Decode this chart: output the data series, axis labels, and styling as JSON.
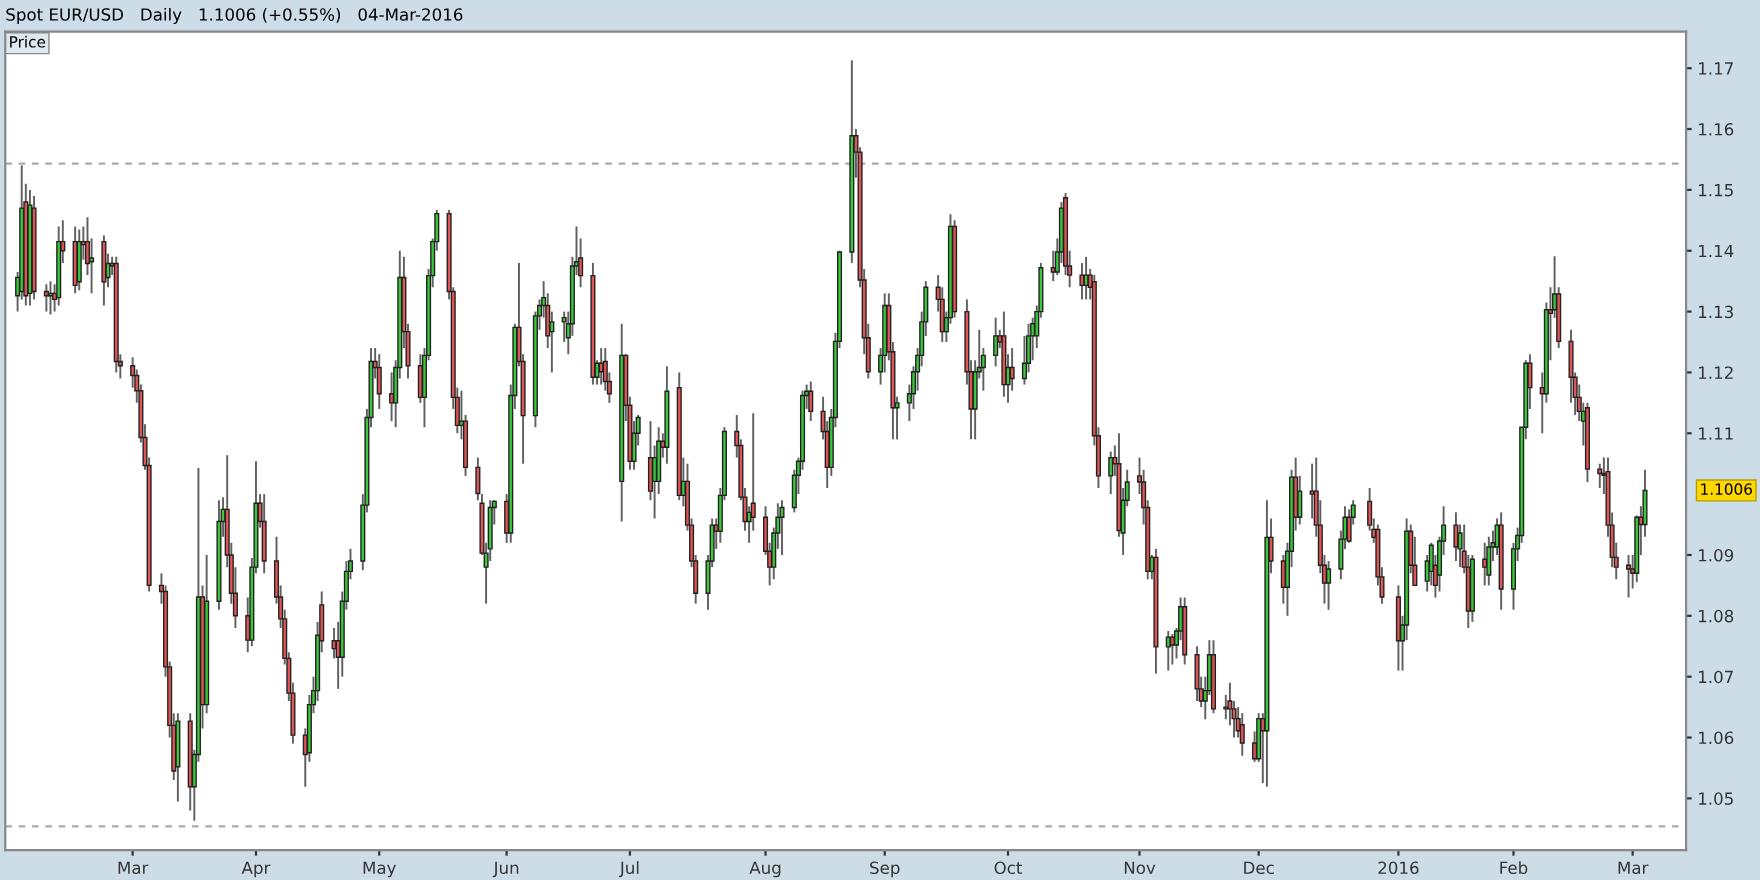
{
  "chart_data": {
    "type": "candlestick",
    "title": "Spot EUR/USD   Daily   1.1006 (+0.55%)   04-Mar-2016",
    "annotations": [
      "Price",
      "1.1006"
    ],
    "ylim": [
      1.0415,
      1.176
    ],
    "yticks": [
      1.05,
      1.06,
      1.07,
      1.08,
      1.09,
      1.11,
      1.12,
      1.13,
      1.14,
      1.15,
      1.16,
      1.17
    ],
    "xlim": [
      "2015-01-30",
      "2016-03-14"
    ],
    "xticks": [
      {
        "value": "2015-03-02",
        "label": "Mar"
      },
      {
        "value": "2015-04-01",
        "label": "Apr"
      },
      {
        "value": "2015-05-01",
        "label": "May"
      },
      {
        "value": "2015-06-01",
        "label": "Jun"
      },
      {
        "value": "2015-07-01",
        "label": "Jul"
      },
      {
        "value": "2015-08-03",
        "label": "Aug"
      },
      {
        "value": "2015-09-01",
        "label": "Sep"
      },
      {
        "value": "2015-10-01",
        "label": "Oct"
      },
      {
        "value": "2015-11-02",
        "label": "Nov"
      },
      {
        "value": "2015-12-01",
        "label": "Dec"
      },
      {
        "value": "2016-01-04",
        "label": "2016"
      },
      {
        "value": "2016-02-01",
        "label": "Feb"
      },
      {
        "value": "2016-03-01",
        "label": "Mar"
      }
    ],
    "ref_lines": [
      {
        "axis": "y",
        "value": 1.1543,
        "color": "#aaaaaa",
        "line_style": "dashed"
      },
      {
        "axis": "y",
        "value": 1.0454,
        "color": "#aaaaaa",
        "line_style": "dashed"
      }
    ],
    "grid": false,
    "legend": false,
    "x": [
      "2015-02-02",
      "2015-02-03",
      "2015-02-04",
      "2015-02-05",
      "2015-02-06",
      "2015-02-09",
      "2015-02-10",
      "2015-02-11",
      "2015-02-12",
      "2015-02-13",
      "2015-02-16",
      "2015-02-17",
      "2015-02-18",
      "2015-02-19",
      "2015-02-20",
      "2015-02-23",
      "2015-02-24",
      "2015-02-25",
      "2015-02-26",
      "2015-02-27",
      "2015-03-02",
      "2015-03-03",
      "2015-03-04",
      "2015-03-05",
      "2015-03-06",
      "2015-03-09",
      "2015-03-10",
      "2015-03-11",
      "2015-03-12",
      "2015-03-13",
      "2015-03-16",
      "2015-03-17",
      "2015-03-18",
      "2015-03-19",
      "2015-03-20",
      "2015-03-23",
      "2015-03-24",
      "2015-03-25",
      "2015-03-26",
      "2015-03-27",
      "2015-03-30",
      "2015-03-31",
      "2015-04-01",
      "2015-04-02",
      "2015-04-03",
      "2015-04-06",
      "2015-04-07",
      "2015-04-08",
      "2015-04-09",
      "2015-04-10",
      "2015-04-13",
      "2015-04-14",
      "2015-04-15",
      "2015-04-16",
      "2015-04-17",
      "2015-04-20",
      "2015-04-21",
      "2015-04-22",
      "2015-04-23",
      "2015-04-24",
      "2015-04-27",
      "2015-04-28",
      "2015-04-29",
      "2015-04-30",
      "2015-05-01",
      "2015-05-04",
      "2015-05-05",
      "2015-05-06",
      "2015-05-07",
      "2015-05-08",
      "2015-05-11",
      "2015-05-12",
      "2015-05-13",
      "2015-05-14",
      "2015-05-15",
      "2015-05-18",
      "2015-05-19",
      "2015-05-20",
      "2015-05-21",
      "2015-05-22",
      "2015-05-25",
      "2015-05-26",
      "2015-05-27",
      "2015-05-28",
      "2015-05-29",
      "2015-06-01",
      "2015-06-02",
      "2015-06-03",
      "2015-06-04",
      "2015-06-05",
      "2015-06-08",
      "2015-06-09",
      "2015-06-10",
      "2015-06-11",
      "2015-06-12",
      "2015-06-15",
      "2015-06-16",
      "2015-06-17",
      "2015-06-18",
      "2015-06-19",
      "2015-06-22",
      "2015-06-23",
      "2015-06-24",
      "2015-06-25",
      "2015-06-26",
      "2015-06-29",
      "2015-06-30",
      "2015-07-01",
      "2015-07-02",
      "2015-07-03",
      "2015-07-06",
      "2015-07-07",
      "2015-07-08",
      "2015-07-09",
      "2015-07-10",
      "2015-07-13",
      "2015-07-14",
      "2015-07-15",
      "2015-07-16",
      "2015-07-17",
      "2015-07-20",
      "2015-07-21",
      "2015-07-22",
      "2015-07-23",
      "2015-07-24",
      "2015-07-27",
      "2015-07-28",
      "2015-07-29",
      "2015-07-30",
      "2015-07-31",
      "2015-08-03",
      "2015-08-04",
      "2015-08-05",
      "2015-08-06",
      "2015-08-07",
      "2015-08-10",
      "2015-08-11",
      "2015-08-12",
      "2015-08-13",
      "2015-08-14",
      "2015-08-17",
      "2015-08-18",
      "2015-08-19",
      "2015-08-20",
      "2015-08-21",
      "2015-08-24",
      "2015-08-25",
      "2015-08-26",
      "2015-08-27",
      "2015-08-28",
      "2015-08-31",
      "2015-09-01",
      "2015-09-02",
      "2015-09-03",
      "2015-09-04",
      "2015-09-07",
      "2015-09-08",
      "2015-09-09",
      "2015-09-10",
      "2015-09-11",
      "2015-09-14",
      "2015-09-15",
      "2015-09-16",
      "2015-09-17",
      "2015-09-18",
      "2015-09-21",
      "2015-09-22",
      "2015-09-23",
      "2015-09-24",
      "2015-09-25",
      "2015-09-28",
      "2015-09-29",
      "2015-09-30",
      "2015-10-01",
      "2015-10-02",
      "2015-10-05",
      "2015-10-06",
      "2015-10-07",
      "2015-10-08",
      "2015-10-09",
      "2015-10-12",
      "2015-10-13",
      "2015-10-14",
      "2015-10-15",
      "2015-10-16",
      "2015-10-19",
      "2015-10-20",
      "2015-10-21",
      "2015-10-22",
      "2015-10-23",
      "2015-10-26",
      "2015-10-27",
      "2015-10-28",
      "2015-10-29",
      "2015-10-30",
      "2015-11-02",
      "2015-11-03",
      "2015-11-04",
      "2015-11-05",
      "2015-11-06",
      "2015-11-09",
      "2015-11-10",
      "2015-11-11",
      "2015-11-12",
      "2015-11-13",
      "2015-11-16",
      "2015-11-17",
      "2015-11-18",
      "2015-11-19",
      "2015-11-20",
      "2015-11-23",
      "2015-11-24",
      "2015-11-25",
      "2015-11-26",
      "2015-11-27",
      "2015-11-30",
      "2015-12-01",
      "2015-12-02",
      "2015-12-03",
      "2015-12-04",
      "2015-12-07",
      "2015-12-08",
      "2015-12-09",
      "2015-12-10",
      "2015-12-11",
      "2015-12-14",
      "2015-12-15",
      "2015-12-16",
      "2015-12-17",
      "2015-12-18",
      "2015-12-21",
      "2015-12-22",
      "2015-12-23",
      "2015-12-24",
      "2015-12-28",
      "2015-12-29",
      "2015-12-30",
      "2015-12-31",
      "2016-01-04",
      "2016-01-05",
      "2016-01-06",
      "2016-01-07",
      "2016-01-08",
      "2016-01-11",
      "2016-01-12",
      "2016-01-13",
      "2016-01-14",
      "2016-01-15",
      "2016-01-18",
      "2016-01-19",
      "2016-01-20",
      "2016-01-21",
      "2016-01-22",
      "2016-01-25",
      "2016-01-26",
      "2016-01-27",
      "2016-01-28",
      "2016-01-29",
      "2016-02-01",
      "2016-02-02",
      "2016-02-03",
      "2016-02-04",
      "2016-02-05",
      "2016-02-08",
      "2016-02-09",
      "2016-02-10",
      "2016-02-11",
      "2016-02-12",
      "2016-02-15",
      "2016-02-16",
      "2016-02-17",
      "2016-02-18",
      "2016-02-19",
      "2016-02-22",
      "2016-02-23",
      "2016-02-24",
      "2016-02-25",
      "2016-02-26",
      "2016-02-29",
      "2016-03-01",
      "2016-03-02",
      "2016-03-03",
      "2016-03-04"
    ],
    "ohlc": [
      [
        1.1326,
        1.1365,
        1.13,
        1.1356
      ],
      [
        1.1333,
        1.154,
        1.132,
        1.147
      ],
      [
        1.148,
        1.151,
        1.131,
        1.1326
      ],
      [
        1.133,
        1.15,
        1.131,
        1.1475
      ],
      [
        1.147,
        1.149,
        1.132,
        1.1333
      ],
      [
        1.1333,
        1.1345,
        1.13,
        1.1326
      ],
      [
        1.1326,
        1.135,
        1.1295,
        1.133
      ],
      [
        1.133,
        1.1345,
        1.13,
        1.132
      ],
      [
        1.1323,
        1.144,
        1.131,
        1.1415
      ],
      [
        1.1415,
        1.145,
        1.138,
        1.14
      ],
      [
        1.1415,
        1.144,
        1.133,
        1.1343
      ],
      [
        1.1349,
        1.1435,
        1.1335,
        1.1415
      ],
      [
        1.1415,
        1.144,
        1.1385,
        1.141
      ],
      [
        1.1415,
        1.1455,
        1.136,
        1.1379
      ],
      [
        1.1382,
        1.142,
        1.133,
        1.1388
      ],
      [
        1.1415,
        1.1425,
        1.131,
        1.1349
      ],
      [
        1.1356,
        1.1395,
        1.134,
        1.1379
      ],
      [
        1.1379,
        1.139,
        1.136,
        1.1375
      ],
      [
        1.1379,
        1.139,
        1.12,
        1.1218
      ],
      [
        1.1218,
        1.123,
        1.119,
        1.1211
      ],
      [
        1.1211,
        1.1225,
        1.1175,
        1.1195
      ],
      [
        1.1195,
        1.1205,
        1.115,
        1.117
      ],
      [
        1.117,
        1.118,
        1.1085,
        1.1093
      ],
      [
        1.1093,
        1.1115,
        1.104,
        1.1047
      ],
      [
        1.1047,
        1.106,
        1.084,
        1.085
      ],
      [
        1.085,
        1.087,
        1.082,
        1.084
      ],
      [
        1.084,
        1.085,
        1.07,
        1.0716
      ],
      [
        1.0716,
        1.0725,
        1.06,
        1.062
      ],
      [
        1.062,
        1.064,
        1.053,
        1.0545
      ],
      [
        1.0552,
        1.064,
        1.0495,
        1.0627
      ],
      [
        1.0627,
        1.064,
        1.048,
        1.0519
      ],
      [
        1.0519,
        1.058,
        1.0463,
        1.0572
      ],
      [
        1.0572,
        1.1043,
        1.056,
        1.0831
      ],
      [
        1.0831,
        1.085,
        1.0615,
        1.0654
      ],
      [
        1.0654,
        1.09,
        1.064,
        1.0824
      ],
      [
        1.0824,
        1.099,
        1.081,
        1.0955
      ],
      [
        1.0955,
        1.0995,
        1.093,
        1.0975
      ],
      [
        1.0975,
        1.1064,
        1.088,
        1.09
      ],
      [
        1.09,
        1.092,
        1.082,
        1.0837
      ],
      [
        1.0837,
        1.088,
        1.078,
        1.08
      ],
      [
        1.08,
        1.083,
        1.074,
        1.076
      ],
      [
        1.076,
        1.0895,
        1.075,
        1.088
      ],
      [
        1.088,
        1.1054,
        1.087,
        1.0985
      ],
      [
        1.0985,
        1.1,
        1.0945,
        1.0955
      ],
      [
        1.0955,
        1.1,
        1.087,
        1.089
      ],
      [
        1.089,
        1.093,
        1.082,
        1.0831
      ],
      [
        1.0831,
        1.085,
        1.078,
        1.0795
      ],
      [
        1.0795,
        1.081,
        1.072,
        1.073
      ],
      [
        1.073,
        1.074,
        1.066,
        1.0673
      ],
      [
        1.0673,
        1.069,
        1.059,
        1.0604
      ],
      [
        1.0604,
        1.0615,
        1.0519,
        1.0572
      ],
      [
        1.0575,
        1.067,
        1.056,
        1.0654
      ],
      [
        1.0654,
        1.07,
        1.064,
        1.0677
      ],
      [
        1.0677,
        1.079,
        1.066,
        1.0768
      ],
      [
        1.0818,
        1.084,
        1.074,
        1.0759
      ],
      [
        1.0759,
        1.078,
        1.073,
        1.0746
      ],
      [
        1.0759,
        1.079,
        1.068,
        1.0732
      ],
      [
        1.0732,
        1.084,
        1.07,
        1.0824
      ],
      [
        1.0824,
        1.089,
        1.081,
        1.0873
      ],
      [
        1.0873,
        1.091,
        1.086,
        1.089
      ],
      [
        1.089,
        1.1,
        1.0875,
        1.0982
      ],
      [
        1.0982,
        1.114,
        1.097,
        1.1126
      ],
      [
        1.1126,
        1.124,
        1.111,
        1.1218
      ],
      [
        1.1218,
        1.124,
        1.119,
        1.1208
      ],
      [
        1.1208,
        1.123,
        1.114,
        1.1165
      ],
      [
        1.1165,
        1.12,
        1.112,
        1.115
      ],
      [
        1.115,
        1.122,
        1.111,
        1.1208
      ],
      [
        1.1208,
        1.14,
        1.119,
        1.1356
      ],
      [
        1.1356,
        1.139,
        1.124,
        1.1267
      ],
      [
        1.1267,
        1.128,
        1.119,
        1.1211
      ],
      [
        1.1211,
        1.123,
        1.115,
        1.1159
      ],
      [
        1.1159,
        1.124,
        1.111,
        1.1228
      ],
      [
        1.1228,
        1.137,
        1.122,
        1.1359
      ],
      [
        1.1359,
        1.142,
        1.134,
        1.1415
      ],
      [
        1.1415,
        1.1467,
        1.14,
        1.1461
      ],
      [
        1.1461,
        1.1467,
        1.132,
        1.1333
      ],
      [
        1.1333,
        1.134,
        1.114,
        1.1159
      ],
      [
        1.1159,
        1.1175,
        1.11,
        1.1113
      ],
      [
        1.1113,
        1.117,
        1.109,
        1.112
      ],
      [
        1.112,
        1.113,
        1.103,
        1.1044
      ],
      [
        1.1044,
        1.106,
        1.099,
        1.1001
      ],
      [
        1.0985,
        1.1,
        1.09,
        1.0903
      ],
      [
        1.088,
        1.092,
        1.082,
        1.0903
      ],
      [
        1.091,
        1.099,
        1.089,
        1.0978
      ],
      [
        1.0978,
        1.099,
        1.095,
        1.0988
      ],
      [
        1.0988,
        1.1,
        1.092,
        1.0936
      ],
      [
        1.0936,
        1.118,
        1.092,
        1.1162
      ],
      [
        1.1162,
        1.128,
        1.114,
        1.1274
      ],
      [
        1.1274,
        1.138,
        1.121,
        1.1218
      ],
      [
        1.1218,
        1.123,
        1.105,
        1.1129
      ],
      [
        1.1129,
        1.13,
        1.111,
        1.1293
      ],
      [
        1.1293,
        1.132,
        1.127,
        1.131
      ],
      [
        1.131,
        1.135,
        1.129,
        1.1323
      ],
      [
        1.131,
        1.133,
        1.124,
        1.126
      ],
      [
        1.1267,
        1.13,
        1.12,
        1.1283
      ],
      [
        1.1283,
        1.13,
        1.125,
        1.129
      ],
      [
        1.1257,
        1.13,
        1.123,
        1.128
      ],
      [
        1.128,
        1.139,
        1.126,
        1.1375
      ],
      [
        1.1375,
        1.144,
        1.136,
        1.1382
      ],
      [
        1.1388,
        1.142,
        1.134,
        1.1359
      ],
      [
        1.1359,
        1.138,
        1.118,
        1.1192
      ],
      [
        1.1192,
        1.122,
        1.118,
        1.1215
      ],
      [
        1.1215,
        1.124,
        1.118,
        1.1201
      ],
      [
        1.1218,
        1.124,
        1.117,
        1.1185
      ],
      [
        1.1185,
        1.12,
        1.115,
        1.1165
      ],
      [
        1.1021,
        1.128,
        1.0955,
        1.1228
      ],
      [
        1.1228,
        1.123,
        1.112,
        1.1146
      ],
      [
        1.1146,
        1.116,
        1.104,
        1.1054
      ],
      [
        1.1054,
        1.112,
        1.104,
        1.11
      ],
      [
        1.11,
        1.113,
        1.108,
        1.1126
      ],
      [
        1.106,
        1.112,
        1.099,
        1.1005
      ],
      [
        1.1021,
        1.108,
        1.096,
        1.106
      ],
      [
        1.1021,
        1.111,
        1.1,
        1.1087
      ],
      [
        1.1087,
        1.11,
        1.106,
        1.1077
      ],
      [
        1.1077,
        1.121,
        1.105,
        1.1169
      ],
      [
        1.1175,
        1.12,
        1.099,
        1.0998
      ],
      [
        1.0998,
        1.106,
        1.098,
        1.1021
      ],
      [
        1.1021,
        1.105,
        1.094,
        1.0949
      ],
      [
        1.0949,
        1.096,
        1.088,
        1.089
      ],
      [
        1.089,
        1.09,
        1.082,
        1.0837
      ],
      [
        1.0837,
        1.09,
        1.081,
        1.089
      ],
      [
        1.089,
        1.096,
        1.088,
        1.0949
      ],
      [
        1.0949,
        1.096,
        1.091,
        1.0939
      ],
      [
        1.0939,
        1.101,
        1.092,
        1.0998
      ],
      [
        1.0998,
        1.111,
        1.099,
        1.1103
      ],
      [
        1.1103,
        1.113,
        1.106,
        1.108
      ],
      [
        1.108,
        1.109,
        1.099,
        1.0995
      ],
      [
        1.0995,
        1.101,
        1.094,
        1.0955
      ],
      [
        1.0955,
        1.098,
        1.092,
        1.097
      ],
      [
        1.0985,
        1.1133,
        1.094,
        1.0962
      ],
      [
        1.0962,
        1.098,
        1.09,
        1.0906
      ],
      [
        1.0906,
        1.092,
        1.085,
        1.088
      ],
      [
        1.088,
        1.0945,
        1.086,
        1.0936
      ],
      [
        1.0936,
        1.0985,
        1.091,
        1.0962
      ],
      [
        1.0962,
        1.099,
        1.09,
        1.0978
      ],
      [
        1.0978,
        1.104,
        1.097,
        1.1031
      ],
      [
        1.1031,
        1.106,
        1.1,
        1.1054
      ],
      [
        1.1054,
        1.117,
        1.104,
        1.1162
      ],
      [
        1.1162,
        1.118,
        1.114,
        1.1169
      ],
      [
        1.1169,
        1.1185,
        1.112,
        1.1136
      ],
      [
        1.1136,
        1.116,
        1.109,
        1.1103
      ],
      [
        1.1103,
        1.112,
        1.101,
        1.1044
      ],
      [
        1.1044,
        1.114,
        1.103,
        1.1126
      ],
      [
        1.1126,
        1.1265,
        1.111,
        1.1251
      ],
      [
        1.1251,
        1.14,
        1.124,
        1.1398
      ],
      [
        1.1398,
        1.1713,
        1.138,
        1.1589
      ],
      [
        1.1589,
        1.16,
        1.152,
        1.1562
      ],
      [
        1.1562,
        1.157,
        1.134,
        1.1352
      ],
      [
        1.1352,
        1.137,
        1.123,
        1.1257
      ],
      [
        1.1257,
        1.128,
        1.119,
        1.1201
      ],
      [
        1.1201,
        1.124,
        1.118,
        1.1228
      ],
      [
        1.1228,
        1.133,
        1.12,
        1.131
      ],
      [
        1.131,
        1.133,
        1.122,
        1.1234
      ],
      [
        1.1234,
        1.125,
        1.109,
        1.1142
      ],
      [
        1.1142,
        1.116,
        1.109,
        1.115
      ],
      [
        1.115,
        1.118,
        1.112,
        1.1165
      ],
      [
        1.1165,
        1.121,
        1.114,
        1.1201
      ],
      [
        1.1201,
        1.124,
        1.117,
        1.1228
      ],
      [
        1.1228,
        1.13,
        1.121,
        1.1283
      ],
      [
        1.1283,
        1.135,
        1.126,
        1.134
      ],
      [
        1.134,
        1.136,
        1.13,
        1.132
      ],
      [
        1.132,
        1.134,
        1.125,
        1.1267
      ],
      [
        1.1267,
        1.13,
        1.125,
        1.129
      ],
      [
        1.129,
        1.146,
        1.128,
        1.144
      ],
      [
        1.144,
        1.145,
        1.129,
        1.13
      ],
      [
        1.13,
        1.132,
        1.118,
        1.1201
      ],
      [
        1.1201,
        1.122,
        1.109,
        1.114
      ],
      [
        1.114,
        1.122,
        1.109,
        1.1201
      ],
      [
        1.1201,
        1.127,
        1.119,
        1.1208
      ],
      [
        1.1208,
        1.124,
        1.117,
        1.1228
      ],
      [
        1.1228,
        1.129,
        1.121,
        1.126
      ],
      [
        1.126,
        1.127,
        1.124,
        1.125
      ],
      [
        1.126,
        1.13,
        1.116,
        1.118
      ],
      [
        1.118,
        1.123,
        1.115,
        1.1208
      ],
      [
        1.1208,
        1.124,
        1.117,
        1.119
      ],
      [
        1.119,
        1.126,
        1.118,
        1.1215
      ],
      [
        1.1215,
        1.128,
        1.12,
        1.126
      ],
      [
        1.126,
        1.129,
        1.122,
        1.128
      ],
      [
        1.126,
        1.131,
        1.124,
        1.13
      ],
      [
        1.13,
        1.138,
        1.129,
        1.1372
      ],
      [
        1.1372,
        1.14,
        1.135,
        1.1365
      ],
      [
        1.1365,
        1.142,
        1.136,
        1.1398
      ],
      [
        1.1398,
        1.148,
        1.138,
        1.147
      ],
      [
        1.1487,
        1.1495,
        1.136,
        1.1375
      ],
      [
        1.1375,
        1.14,
        1.134,
        1.136
      ],
      [
        1.136,
        1.138,
        1.132,
        1.1343
      ],
      [
        1.1343,
        1.139,
        1.132,
        1.136
      ],
      [
        1.136,
        1.137,
        1.132,
        1.134
      ],
      [
        1.1349,
        1.136,
        1.108,
        1.1096
      ],
      [
        1.1096,
        1.111,
        1.101,
        1.103
      ],
      [
        1.103,
        1.107,
        1.1,
        1.106
      ],
      [
        1.106,
        1.108,
        1.103,
        1.105
      ],
      [
        1.105,
        1.11,
        1.093,
        1.094
      ],
      [
        1.0936,
        1.101,
        1.09,
        1.099
      ],
      [
        1.099,
        1.104,
        1.098,
        1.102
      ],
      [
        1.103,
        1.106,
        1.1,
        1.102
      ],
      [
        1.102,
        1.104,
        1.095,
        1.0978
      ],
      [
        1.0978,
        1.099,
        1.086,
        1.0873
      ],
      [
        1.0873,
        1.09,
        1.086,
        1.0896
      ],
      [
        1.0896,
        1.091,
        1.0705,
        1.0749
      ],
      [
        1.0749,
        1.0775,
        1.071,
        1.0765
      ],
      [
        1.0765,
        1.077,
        1.072,
        1.0752
      ],
      [
        1.0752,
        1.078,
        1.073,
        1.0775
      ],
      [
        1.0775,
        1.083,
        1.076,
        1.0815
      ],
      [
        1.0815,
        1.083,
        1.072,
        1.0736
      ],
      [
        1.0736,
        1.075,
        1.066,
        1.068
      ],
      [
        1.068,
        1.07,
        1.065,
        1.066
      ],
      [
        1.066,
        1.07,
        1.063,
        1.0677
      ],
      [
        1.0677,
        1.076,
        1.067,
        1.0736
      ],
      [
        1.0736,
        1.076,
        1.064,
        1.0647
      ],
      [
        1.0647,
        1.067,
        1.063,
        1.065
      ],
      [
        1.066,
        1.069,
        1.062,
        1.0647
      ],
      [
        1.0647,
        1.066,
        1.06,
        1.0631
      ],
      [
        1.0631,
        1.065,
        1.06,
        1.0611
      ],
      [
        1.0621,
        1.064,
        1.057,
        1.0591
      ],
      [
        1.0591,
        1.061,
        1.056,
        1.0565
      ],
      [
        1.0565,
        1.064,
        1.056,
        1.0631
      ],
      [
        1.0631,
        1.064,
        1.0525,
        1.0611
      ],
      [
        1.0611,
        1.099,
        1.0519,
        1.0929
      ],
      [
        1.0929,
        1.096,
        1.087,
        1.089
      ],
      [
        1.089,
        1.09,
        1.082,
        1.0847
      ],
      [
        1.0847,
        1.092,
        1.08,
        1.0906
      ],
      [
        1.0906,
        1.104,
        1.088,
        1.1028
      ],
      [
        1.1028,
        1.106,
        1.094,
        1.0962
      ],
      [
        1.0962,
        1.103,
        1.095,
        1.1005
      ],
      [
        1.1005,
        1.105,
        1.096,
        1.1
      ],
      [
        1.1005,
        1.106,
        1.093,
        1.0949
      ],
      [
        1.0949,
        1.099,
        1.087,
        1.0883
      ],
      [
        1.0883,
        1.09,
        1.082,
        1.0854
      ],
      [
        1.0854,
        1.089,
        1.081,
        1.0877
      ],
      [
        1.0877,
        1.094,
        1.086,
        1.0926
      ],
      [
        1.0926,
        1.098,
        1.091,
        1.0962
      ],
      [
        1.0962,
        1.0975,
        1.092,
        1.0923
      ],
      [
        1.0962,
        1.099,
        1.095,
        1.0982
      ],
      [
        1.0988,
        1.101,
        1.094,
        1.0949
      ],
      [
        1.0942,
        1.096,
        1.092,
        1.0929
      ],
      [
        1.0942,
        1.095,
        1.085,
        1.0864
      ],
      [
        1.0864,
        1.088,
        1.082,
        1.0831
      ],
      [
        1.0831,
        1.085,
        1.071,
        1.0759
      ],
      [
        1.0759,
        1.08,
        1.071,
        1.0785
      ],
      [
        1.0785,
        1.096,
        1.076,
        1.0939
      ],
      [
        1.0939,
        1.095,
        1.087,
        1.0883
      ],
      [
        1.0883,
        1.093,
        1.085,
        1.085
      ],
      [
        1.0857,
        1.09,
        1.084,
        1.089
      ],
      [
        1.0873,
        1.092,
        1.085,
        1.0916
      ],
      [
        1.0883,
        1.09,
        1.083,
        1.085
      ],
      [
        1.0867,
        1.093,
        1.084,
        1.0923
      ],
      [
        1.0923,
        1.098,
        1.09,
        1.0949
      ],
      [
        1.0949,
        1.097,
        1.089,
        1.0913
      ],
      [
        1.091,
        1.095,
        1.088,
        1.0936
      ],
      [
        1.0906,
        1.095,
        1.087,
        1.088
      ],
      [
        1.088,
        1.09,
        1.078,
        1.0808
      ],
      [
        1.0808,
        1.09,
        1.079,
        1.0893
      ],
      [
        1.0893,
        1.092,
        1.085,
        1.088
      ],
      [
        1.0867,
        1.093,
        1.085,
        1.0913
      ],
      [
        1.0913,
        1.094,
        1.089,
        1.092
      ],
      [
        1.0913,
        1.096,
        1.09,
        1.0949
      ],
      [
        1.0949,
        1.097,
        1.081,
        1.0844
      ],
      [
        1.0844,
        1.092,
        1.081,
        1.091
      ],
      [
        1.091,
        1.0945,
        1.089,
        1.0932
      ],
      [
        1.0932,
        1.111,
        1.092,
        1.111
      ],
      [
        1.111,
        1.122,
        1.109,
        1.1215
      ],
      [
        1.1215,
        1.123,
        1.114,
        1.1175
      ],
      [
        1.1175,
        1.12,
        1.11,
        1.1165
      ],
      [
        1.1165,
        1.1315,
        1.115,
        1.1303
      ],
      [
        1.1303,
        1.134,
        1.122,
        1.1297
      ],
      [
        1.1303,
        1.1391,
        1.129,
        1.1329
      ],
      [
        1.1329,
        1.134,
        1.124,
        1.1251
      ],
      [
        1.1251,
        1.127,
        1.115,
        1.1192
      ],
      [
        1.1192,
        1.12,
        1.113,
        1.1159
      ],
      [
        1.1159,
        1.118,
        1.112,
        1.1136
      ],
      [
        1.112,
        1.115,
        1.108,
        1.1136
      ],
      [
        1.1142,
        1.115,
        1.102,
        1.1041
      ],
      [
        1.1041,
        1.105,
        1.101,
        1.1034
      ],
      [
        1.1034,
        1.106,
        1.1,
        1.1031
      ],
      [
        1.1037,
        1.106,
        1.093,
        1.0949
      ],
      [
        1.0949,
        1.097,
        1.088,
        1.0896
      ],
      [
        1.0896,
        1.092,
        1.086,
        1.088
      ],
      [
        1.0883,
        1.09,
        1.083,
        1.0877
      ],
      [
        1.0877,
        1.09,
        1.0845,
        1.087
      ],
      [
        1.087,
        1.0965,
        1.0855,
        1.0962
      ],
      [
        1.0962,
        1.098,
        1.09,
        1.095
      ],
      [
        1.095,
        1.104,
        1.093,
        1.1006
      ]
    ]
  }
}
